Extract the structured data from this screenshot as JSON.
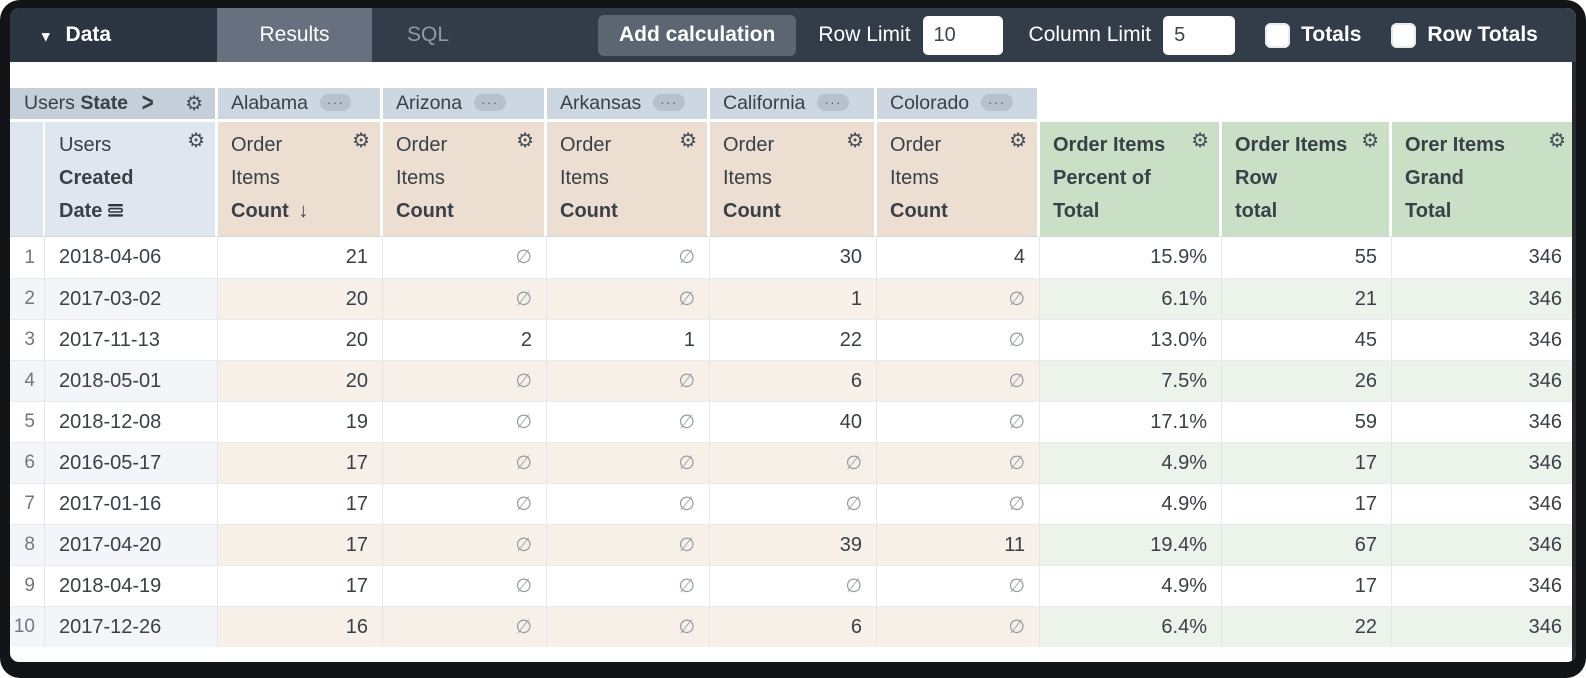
{
  "toolbar": {
    "data_label": "Data",
    "results_label": "Results",
    "sql_label": "SQL",
    "add_calculation_label": "Add calculation",
    "row_limit_label": "Row Limit",
    "row_limit_value": "10",
    "column_limit_label": "Column Limit",
    "column_limit_value": "5",
    "totals_label": "Totals",
    "totals_checked": false,
    "row_totals_label": "Row Totals",
    "row_totals_checked": false
  },
  "pivot": {
    "view": "Users",
    "field": "State",
    "states": [
      "Alabama",
      "Arizona",
      "Arkansas",
      "California",
      "Colorado"
    ]
  },
  "columns": {
    "dimension": {
      "view": "Users",
      "field_line1": "Created",
      "field_line2": "Date"
    },
    "measure": {
      "view_line1": "Order",
      "view_line2": "Items",
      "field": "Count"
    },
    "calcs": [
      {
        "line1": "Order Items",
        "line2": "Percent of",
        "line3": "Total"
      },
      {
        "line1": "Order Items",
        "line2": "Row",
        "line3": "total"
      },
      {
        "line1": "Orer Items",
        "line2": "Grand",
        "line3": "Total"
      }
    ]
  },
  "icons": {
    "caret": "▾",
    "chevron": ">",
    "gear": "⚙",
    "ellipsis": "···",
    "sort_desc": "↓",
    "null": "∅"
  },
  "colors": {
    "toolbar_bg": "#333d4a",
    "data_tab_bg": "#2c3643",
    "results_tab_bg": "#67707e",
    "pivot_header_bg": "#cdd7e1",
    "dimension_header_bg": "#dfe6f0",
    "measure_header_bg": "#ecdfd2",
    "calc_header_bg": "#c9dfc6"
  },
  "rows": [
    {
      "num": "1",
      "date": "2018-04-06",
      "values": [
        "21",
        null,
        null,
        "30",
        "4"
      ],
      "pct": "15.9%",
      "row_total": "55",
      "grand_total": "346"
    },
    {
      "num": "2",
      "date": "2017-03-02",
      "values": [
        "20",
        null,
        null,
        "1",
        null
      ],
      "pct": "6.1%",
      "row_total": "21",
      "grand_total": "346"
    },
    {
      "num": "3",
      "date": "2017-11-13",
      "values": [
        "20",
        "2",
        "1",
        "22",
        null
      ],
      "pct": "13.0%",
      "row_total": "45",
      "grand_total": "346"
    },
    {
      "num": "4",
      "date": "2018-05-01",
      "values": [
        "20",
        null,
        null,
        "6",
        null
      ],
      "pct": "7.5%",
      "row_total": "26",
      "grand_total": "346"
    },
    {
      "num": "5",
      "date": "2018-12-08",
      "values": [
        "19",
        null,
        null,
        "40",
        null
      ],
      "pct": "17.1%",
      "row_total": "59",
      "grand_total": "346"
    },
    {
      "num": "6",
      "date": "2016-05-17",
      "values": [
        "17",
        null,
        null,
        null,
        null
      ],
      "pct": "4.9%",
      "row_total": "17",
      "grand_total": "346"
    },
    {
      "num": "7",
      "date": "2017-01-16",
      "values": [
        "17",
        null,
        null,
        null,
        null
      ],
      "pct": "4.9%",
      "row_total": "17",
      "grand_total": "346"
    },
    {
      "num": "8",
      "date": "2017-04-20",
      "values": [
        "17",
        null,
        null,
        "39",
        "11"
      ],
      "pct": "19.4%",
      "row_total": "67",
      "grand_total": "346"
    },
    {
      "num": "9",
      "date": "2018-04-19",
      "values": [
        "17",
        null,
        null,
        null,
        null
      ],
      "pct": "4.9%",
      "row_total": "17",
      "grand_total": "346"
    },
    {
      "num": "10",
      "date": "2017-12-26",
      "values": [
        "16",
        null,
        null,
        "6",
        null
      ],
      "pct": "6.4%",
      "row_total": "22",
      "grand_total": "346"
    }
  ]
}
